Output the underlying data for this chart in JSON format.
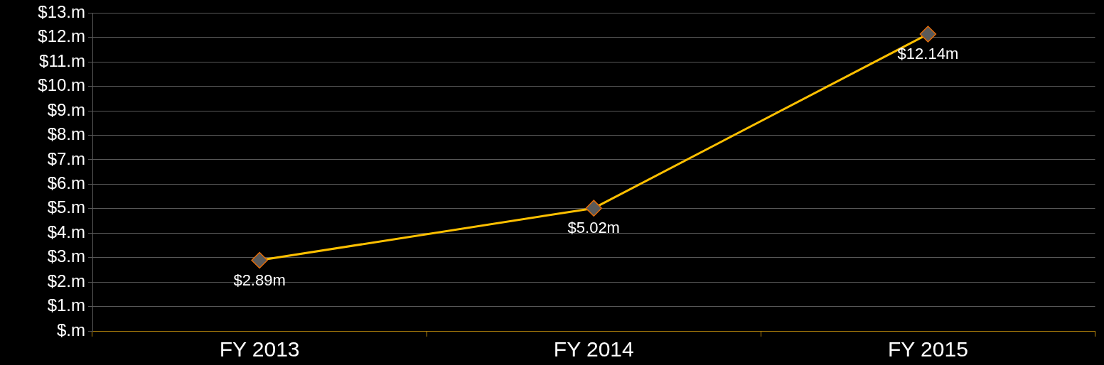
{
  "chart_data": {
    "type": "line",
    "categories": [
      "FY 2013",
      "FY 2014",
      "FY 2015"
    ],
    "series": [
      {
        "color": "#ffc000",
        "values": [
          2.89,
          5.02,
          12.14
        ],
        "value_labels": [
          "$2.89m",
          "$5.02m",
          "$12.14m"
        ]
      }
    ],
    "ylim": [
      0,
      13
    ],
    "yticks": [
      {
        "value": 0,
        "label": "$.m"
      },
      {
        "value": 1,
        "label": "$1.m"
      },
      {
        "value": 2,
        "label": "$2.m"
      },
      {
        "value": 3,
        "label": "$3.m"
      },
      {
        "value": 4,
        "label": "$4.m"
      },
      {
        "value": 5,
        "label": "$5.m"
      },
      {
        "value": 6,
        "label": "$6.m"
      },
      {
        "value": 7,
        "label": "$7.m"
      },
      {
        "value": 8,
        "label": "$8.m"
      },
      {
        "value": 9,
        "label": "$9.m"
      },
      {
        "value": 10,
        "label": "$10.m"
      },
      {
        "value": 11,
        "label": "$11.m"
      },
      {
        "value": 12,
        "label": "$12.m"
      },
      {
        "value": 13,
        "label": "$13.m"
      }
    ],
    "grid": "y",
    "marker": "diamond",
    "line_style": "solid",
    "legend": false
  }
}
